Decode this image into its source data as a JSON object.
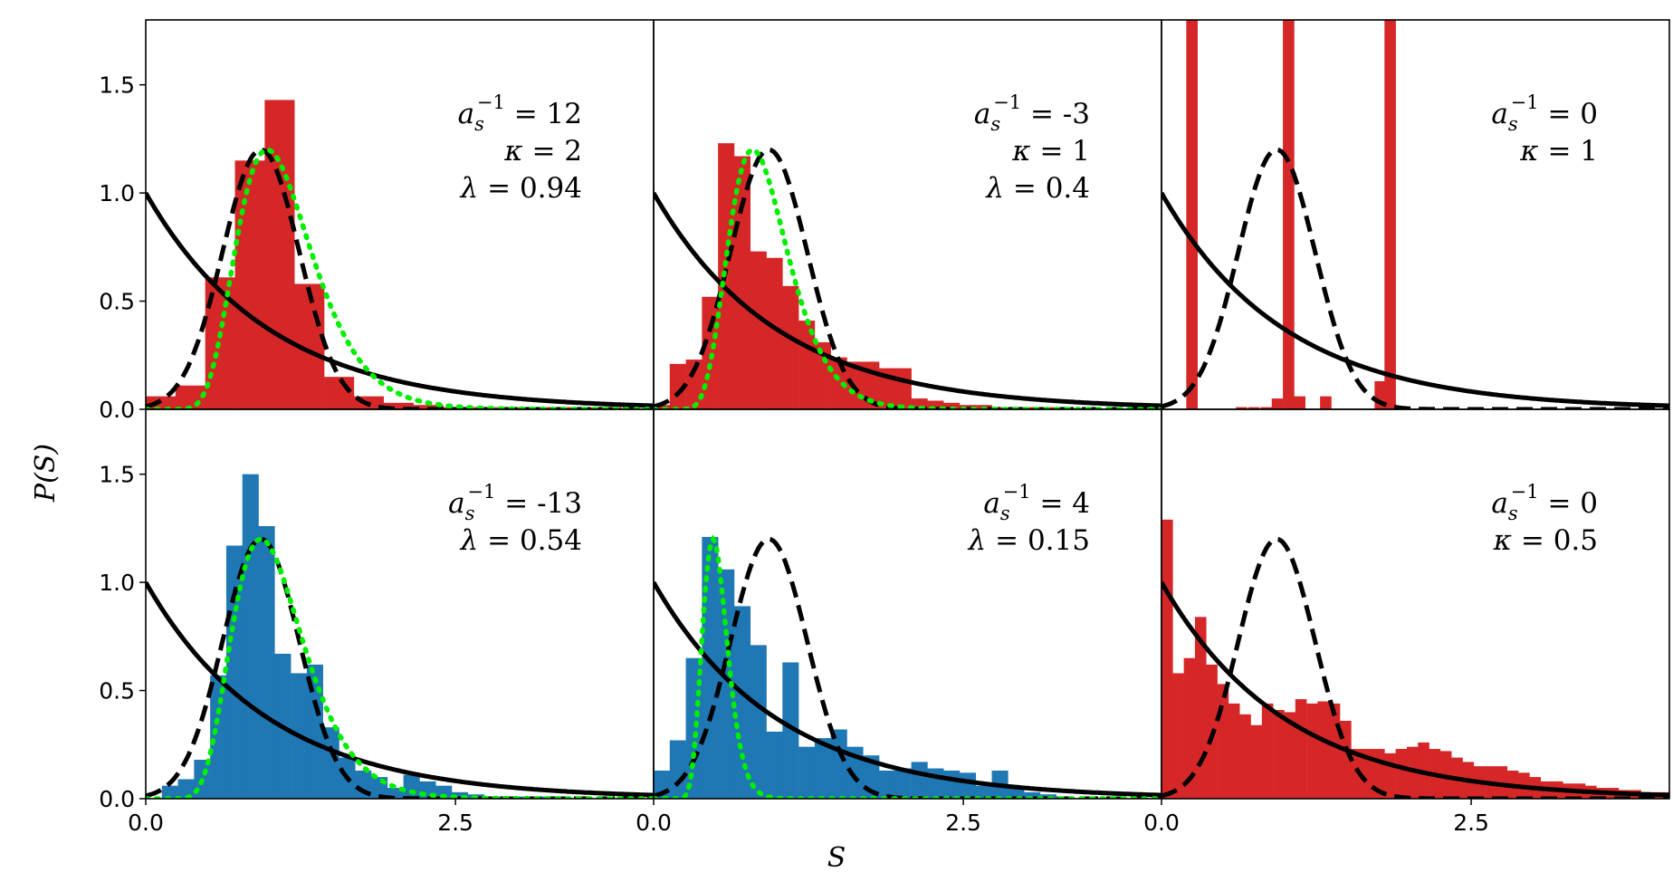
{
  "figure": {
    "xlabel": "S",
    "ylabel": "P(S)",
    "colors": {
      "red": "#d62728",
      "blue": "#1f77b4",
      "green": "#00ee00",
      "curve": "#000000"
    }
  },
  "chart_data": [
    {
      "type": "bar",
      "panel": "top-left",
      "color": "red",
      "xlim": [
        0,
        4.1
      ],
      "ylim": [
        0,
        1.8
      ],
      "xticks": [],
      "yticks": [
        "0.0",
        "0.5",
        "1.0",
        "1.5"
      ],
      "annotation": [
        {
          "label": "a_s^{-1}",
          "sym": "a",
          "sub": "s",
          "sup": "−1",
          "value": "12"
        },
        {
          "label": "κ",
          "sym": "κ",
          "value": "2"
        },
        {
          "label": "λ",
          "sym": "λ",
          "value": "0.94"
        }
      ],
      "bin_width": 0.24,
      "bins": [
        [
          0.0,
          0.06
        ],
        [
          0.24,
          0.11
        ],
        [
          0.48,
          0.61
        ],
        [
          0.72,
          1.15
        ],
        [
          0.96,
          1.43
        ],
        [
          1.2,
          0.58
        ],
        [
          1.44,
          0.15
        ],
        [
          1.68,
          0.06
        ],
        [
          1.92,
          0.03
        ],
        [
          2.16,
          0.02
        ],
        [
          2.4,
          0.01
        ],
        [
          2.64,
          0.01
        ],
        [
          2.88,
          0.01
        ],
        [
          3.12,
          0.01
        ],
        [
          3.36,
          0.01
        ],
        [
          3.6,
          0.01
        ]
      ],
      "curves": [
        "poisson",
        "wigner",
        "fit"
      ],
      "fit": {
        "scale": 0.98,
        "width": 0.31,
        "height": 1.2
      }
    },
    {
      "type": "bar",
      "panel": "top-middle",
      "color": "red",
      "xlim": [
        0,
        4.1
      ],
      "ylim": [
        0,
        1.8
      ],
      "xticks": [],
      "yticks": [],
      "annotation": [
        {
          "label": "a_s^{-1}",
          "sym": "a",
          "sub": "s",
          "sup": "−1",
          "value": "-3"
        },
        {
          "label": "κ",
          "sym": "κ",
          "value": "1"
        },
        {
          "label": "λ",
          "sym": "λ",
          "value": "0.4"
        }
      ],
      "bin_width": 0.13,
      "bins": [
        [
          0.0,
          0.02
        ],
        [
          0.13,
          0.21
        ],
        [
          0.26,
          0.23
        ],
        [
          0.39,
          0.52
        ],
        [
          0.52,
          1.23
        ],
        [
          0.65,
          1.17
        ],
        [
          0.78,
          0.73
        ],
        [
          0.91,
          0.7
        ],
        [
          1.04,
          0.57
        ],
        [
          1.17,
          0.41
        ],
        [
          1.3,
          0.31
        ],
        [
          1.43,
          0.24
        ],
        [
          1.56,
          0.22
        ],
        [
          1.69,
          0.22
        ],
        [
          1.82,
          0.19
        ],
        [
          1.95,
          0.19
        ],
        [
          2.08,
          0.05
        ],
        [
          2.21,
          0.04
        ],
        [
          2.34,
          0.03
        ],
        [
          2.47,
          0.02
        ],
        [
          2.6,
          0.02
        ],
        [
          2.73,
          0.01
        ],
        [
          2.86,
          0.01
        ],
        [
          2.99,
          0.01
        ],
        [
          3.12,
          0.01
        ],
        [
          3.25,
          0.01
        ]
      ],
      "curves": [
        "poisson",
        "wigner",
        "fit"
      ],
      "fit": {
        "scale": 0.8,
        "width": 0.3,
        "height": 1.2
      }
    },
    {
      "type": "bar",
      "panel": "top-right",
      "color": "red",
      "xlim": [
        0,
        4.1
      ],
      "ylim": [
        0,
        1.8
      ],
      "xticks": [],
      "yticks": [],
      "annotation": [
        {
          "label": "a_s^{-1}",
          "sym": "a",
          "sub": "s",
          "sup": "−1",
          "value": "0"
        },
        {
          "label": "κ",
          "sym": "κ",
          "value": "1"
        }
      ],
      "bin_width": 0.09,
      "bins": [
        [
          0.2,
          2.0
        ],
        [
          0.6,
          0.01
        ],
        [
          0.7,
          0.01
        ],
        [
          0.8,
          0.01
        ],
        [
          0.89,
          0.05
        ],
        [
          0.98,
          2.0
        ],
        [
          1.07,
          0.06
        ],
        [
          1.28,
          0.06
        ],
        [
          1.72,
          0.13
        ],
        [
          1.8,
          2.0
        ]
      ],
      "curves": [
        "poisson",
        "wigner"
      ]
    },
    {
      "type": "bar",
      "panel": "bottom-left",
      "color": "blue",
      "xlim": [
        0,
        4.1
      ],
      "ylim": [
        0,
        1.8
      ],
      "xticks": [
        "0.0",
        "2.5"
      ],
      "yticks": [
        "0.0",
        "0.5",
        "1.0",
        "1.5"
      ],
      "annotation": [
        {
          "label": "a_s^{-1}",
          "sym": "a",
          "sub": "s",
          "sup": "−1",
          "value": "-13"
        },
        {
          "label": "λ",
          "sym": "λ",
          "value": "0.54"
        }
      ],
      "bin_width": 0.13,
      "bins": [
        [
          0.13,
          0.06
        ],
        [
          0.26,
          0.09
        ],
        [
          0.39,
          0.18
        ],
        [
          0.52,
          0.57
        ],
        [
          0.65,
          1.17
        ],
        [
          0.78,
          1.5
        ],
        [
          0.91,
          1.26
        ],
        [
          1.04,
          0.67
        ],
        [
          1.17,
          0.58
        ],
        [
          1.3,
          0.62
        ],
        [
          1.43,
          0.33
        ],
        [
          1.56,
          0.19
        ],
        [
          1.69,
          0.13
        ],
        [
          1.82,
          0.1
        ],
        [
          1.95,
          0.05
        ],
        [
          2.08,
          0.11
        ],
        [
          2.21,
          0.08
        ],
        [
          2.34,
          0.06
        ],
        [
          2.47,
          0.03
        ],
        [
          2.6,
          0.02
        ],
        [
          2.73,
          0.01
        ],
        [
          2.86,
          0.01
        ],
        [
          2.99,
          0.01
        ],
        [
          3.12,
          0.01
        ]
      ],
      "curves": [
        "poisson",
        "wigner",
        "fit"
      ],
      "fit": {
        "scale": 0.93,
        "width": 0.31,
        "height": 1.2
      }
    },
    {
      "type": "bar",
      "panel": "bottom-middle",
      "color": "blue",
      "xlim": [
        0,
        4.1
      ],
      "ylim": [
        0,
        1.8
      ],
      "xticks": [
        "0.0",
        "2.5"
      ],
      "yticks": [],
      "annotation": [
        {
          "label": "a_s^{-1}",
          "sym": "a",
          "sub": "s",
          "sup": "−1",
          "value": "4"
        },
        {
          "label": "λ",
          "sym": "λ",
          "value": "0.15"
        }
      ],
      "bin_width": 0.13,
      "bins": [
        [
          0.0,
          0.13
        ],
        [
          0.13,
          0.27
        ],
        [
          0.26,
          0.65
        ],
        [
          0.39,
          1.21
        ],
        [
          0.52,
          1.06
        ],
        [
          0.65,
          0.89
        ],
        [
          0.78,
          0.71
        ],
        [
          0.91,
          0.31
        ],
        [
          1.04,
          0.63
        ],
        [
          1.17,
          0.24
        ],
        [
          1.3,
          0.28
        ],
        [
          1.43,
          0.32
        ],
        [
          1.56,
          0.24
        ],
        [
          1.69,
          0.2
        ],
        [
          1.82,
          0.13
        ],
        [
          1.95,
          0.14
        ],
        [
          2.08,
          0.17
        ],
        [
          2.21,
          0.14
        ],
        [
          2.34,
          0.13
        ],
        [
          2.47,
          0.12
        ],
        [
          2.6,
          0.06
        ],
        [
          2.73,
          0.13
        ],
        [
          2.86,
          0.05
        ],
        [
          2.99,
          0.03
        ],
        [
          3.12,
          0.02
        ],
        [
          3.25,
          0.01
        ]
      ],
      "curves": [
        "poisson",
        "wigner",
        "fit"
      ],
      "fit": {
        "scale": 0.48,
        "width": 0.21,
        "height": 1.2
      }
    },
    {
      "type": "bar",
      "panel": "bottom-right",
      "color": "red",
      "xlim": [
        0,
        4.1
      ],
      "ylim": [
        0,
        1.8
      ],
      "xticks": [
        "0.0",
        "2.5"
      ],
      "yticks": [],
      "annotation": [
        {
          "label": "a_s^{-1}",
          "sym": "a",
          "sub": "s",
          "sup": "−1",
          "value": "0"
        },
        {
          "label": "κ",
          "sym": "κ",
          "value": "0.5"
        }
      ],
      "bin_width": 0.09,
      "bins": [
        [
          0.0,
          1.29
        ],
        [
          0.09,
          0.58
        ],
        [
          0.18,
          0.65
        ],
        [
          0.27,
          0.84
        ],
        [
          0.36,
          0.62
        ],
        [
          0.45,
          0.53
        ],
        [
          0.54,
          0.44
        ],
        [
          0.63,
          0.39
        ],
        [
          0.72,
          0.34
        ],
        [
          0.81,
          0.44
        ],
        [
          0.9,
          0.41
        ],
        [
          0.99,
          0.4
        ],
        [
          1.08,
          0.46
        ],
        [
          1.17,
          0.44
        ],
        [
          1.26,
          0.45
        ],
        [
          1.35,
          0.44
        ],
        [
          1.44,
          0.36
        ],
        [
          1.53,
          0.23
        ],
        [
          1.62,
          0.23
        ],
        [
          1.71,
          0.23
        ],
        [
          1.8,
          0.21
        ],
        [
          1.89,
          0.23
        ],
        [
          1.98,
          0.24
        ],
        [
          2.07,
          0.26
        ],
        [
          2.16,
          0.23
        ],
        [
          2.25,
          0.22
        ],
        [
          2.34,
          0.19
        ],
        [
          2.43,
          0.17
        ],
        [
          2.52,
          0.15
        ],
        [
          2.61,
          0.15
        ],
        [
          2.7,
          0.15
        ],
        [
          2.79,
          0.13
        ],
        [
          2.88,
          0.12
        ],
        [
          2.97,
          0.1
        ],
        [
          3.06,
          0.08
        ],
        [
          3.15,
          0.08
        ],
        [
          3.24,
          0.07
        ],
        [
          3.33,
          0.07
        ],
        [
          3.42,
          0.06
        ],
        [
          3.51,
          0.05
        ],
        [
          3.6,
          0.05
        ],
        [
          3.69,
          0.04
        ],
        [
          3.78,
          0.04
        ],
        [
          3.87,
          0.03
        ],
        [
          3.96,
          0.03
        ],
        [
          4.05,
          0.03
        ]
      ],
      "curves": [
        "poisson",
        "wigner"
      ]
    }
  ]
}
